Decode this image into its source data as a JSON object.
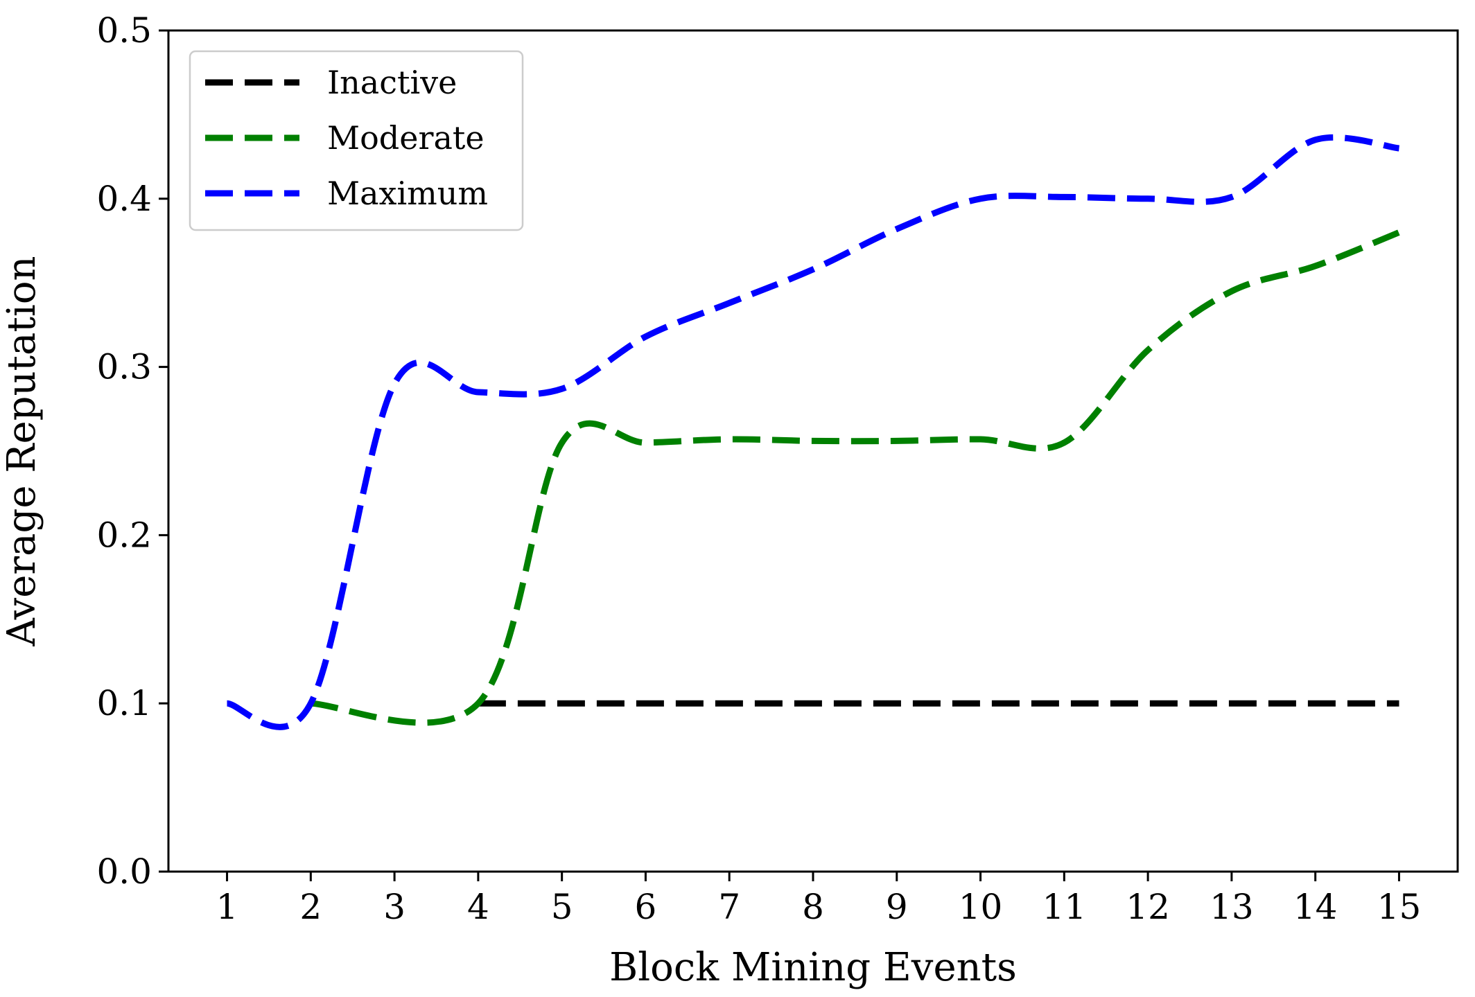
{
  "chart_data": {
    "type": "line",
    "title": "",
    "xlabel": "Block Mining Events",
    "ylabel": "Average Reputation",
    "x": [
      1,
      2,
      3,
      4,
      5,
      6,
      7,
      8,
      9,
      10,
      11,
      12,
      13,
      14,
      15
    ],
    "xticks": [
      "1",
      "2",
      "3",
      "4",
      "5",
      "6",
      "7",
      "8",
      "9",
      "10",
      "11",
      "12",
      "13",
      "14",
      "15"
    ],
    "yticks": [
      "0.0",
      "0.1",
      "0.2",
      "0.3",
      "0.4",
      "0.5"
    ],
    "xlim": [
      0.3,
      15.7
    ],
    "ylim": [
      0.0,
      0.5
    ],
    "grid": false,
    "legend_position": "top-left",
    "series": [
      {
        "name": "Inactive",
        "color": "#000000",
        "style": "dashed",
        "x": [
          4,
          15
        ],
        "y": [
          0.1,
          0.1
        ]
      },
      {
        "name": "Moderate",
        "color": "#008000",
        "style": "dashed",
        "x": [
          2,
          4,
          5,
          6,
          7,
          8,
          9,
          10,
          11,
          12,
          13,
          14,
          15
        ],
        "y": [
          0.1,
          0.1,
          0.255,
          0.255,
          0.257,
          0.256,
          0.256,
          0.257,
          0.255,
          0.31,
          0.345,
          0.36,
          0.38
        ]
      },
      {
        "name": "Maximum",
        "color": "#0000ff",
        "style": "dashed",
        "x": [
          1,
          2,
          3,
          4,
          5,
          6,
          7,
          8,
          9,
          10,
          11,
          12,
          13,
          14,
          15
        ],
        "y": [
          0.1,
          0.1,
          0.29,
          0.285,
          0.287,
          0.318,
          0.338,
          0.358,
          0.382,
          0.4,
          0.401,
          0.4,
          0.401,
          0.435,
          0.43
        ]
      }
    ]
  }
}
